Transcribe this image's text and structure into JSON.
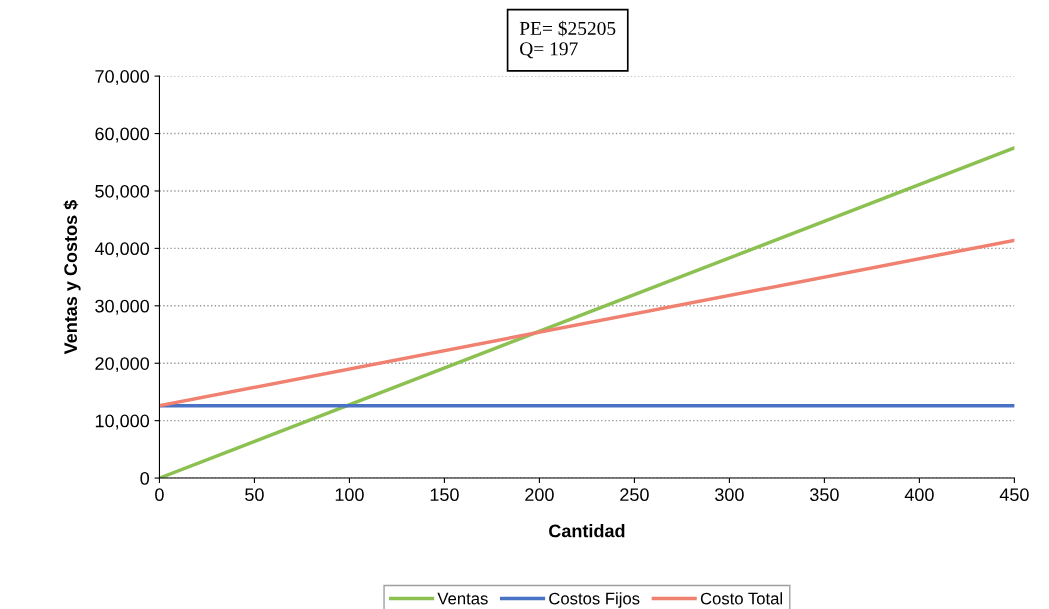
{
  "chart_data": {
    "type": "line",
    "xlabel": "Cantidad",
    "ylabel": "Ventas y Costos $",
    "annotations": [
      "PE= $25205\nQ= 197"
    ],
    "x": [
      0,
      450
    ],
    "series": [
      {
        "name": "Ventas",
        "color": "#8cc152",
        "values": [
          0,
          57500
        ]
      },
      {
        "name": "Costos Fijos",
        "color": "#4a72c4",
        "values": [
          12600,
          12600
        ]
      },
      {
        "name": "Costo Total",
        "color": "#f08070",
        "values": [
          12600,
          41400
        ]
      }
    ],
    "xlim": [
      0,
      450
    ],
    "xticks": [
      0,
      50,
      100,
      150,
      200,
      250,
      300,
      350,
      400,
      450
    ],
    "ylim": [
      0,
      70000
    ],
    "yticks": [
      {
        "value": 0,
        "label": "0"
      },
      {
        "value": 10000,
        "label": "10,000"
      },
      {
        "value": 20000,
        "label": "20,000"
      },
      {
        "value": 30000,
        "label": "30,000"
      },
      {
        "value": 40000,
        "label": "40,000"
      },
      {
        "value": 50000,
        "label": "50,000"
      },
      {
        "value": 60000,
        "label": "60,000"
      },
      {
        "value": 70000,
        "label": "70,000"
      }
    ],
    "grid": "y",
    "legend": "bottom",
    "marker": "none",
    "line_style": "solid"
  }
}
